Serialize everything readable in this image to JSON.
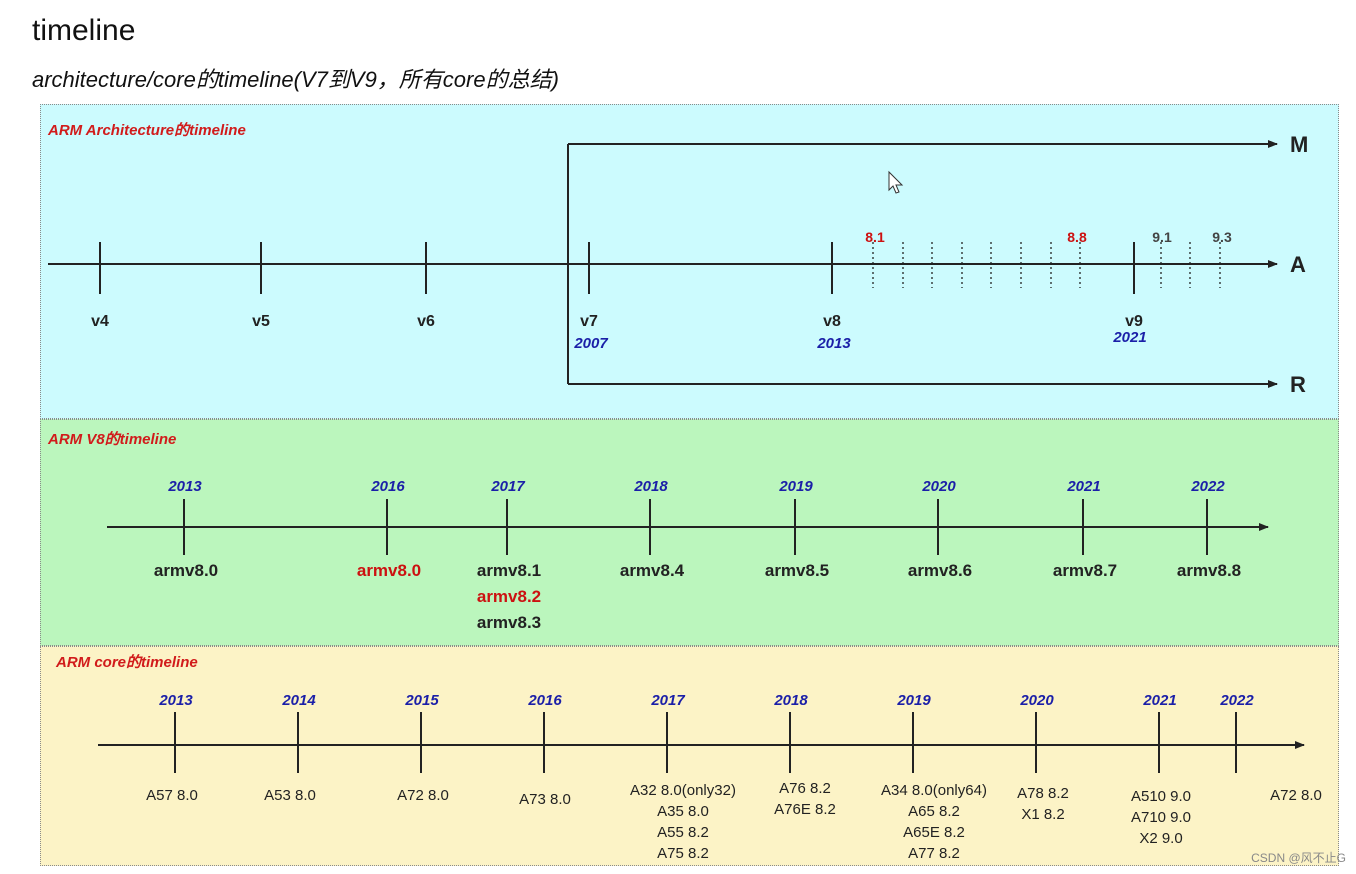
{
  "header": {
    "title": "timeline",
    "subtitle": "architecture/core的timeline(V7到V9，所有core的总结)"
  },
  "colors": {
    "blue_year": "#1b1fa8",
    "red_highlight": "#cc1111",
    "axis": "#222222"
  },
  "arch_panel": {
    "title": "ARM Architecture的timeline",
    "profiles": [
      "M",
      "A",
      "R"
    ],
    "versions": [
      {
        "label": "v4",
        "year": ""
      },
      {
        "label": "v5",
        "year": ""
      },
      {
        "label": "v6",
        "year": ""
      },
      {
        "label": "v7",
        "year": "2007"
      },
      {
        "label": "v8",
        "year": "2013"
      },
      {
        "label": "v9",
        "year": "2021"
      }
    ],
    "minor_labels": [
      {
        "text": "8.1",
        "highlight": true
      },
      {
        "text": "8.8",
        "highlight": true
      },
      {
        "text": "9.1",
        "highlight": false
      },
      {
        "text": "9.3",
        "highlight": false
      }
    ]
  },
  "v8_panel": {
    "title": "ARM V8的timeline",
    "entries": [
      {
        "year": "2013",
        "items": [
          {
            "text": "armv8.0",
            "highlight": false
          }
        ]
      },
      {
        "year": "2016",
        "items": [
          {
            "text": "armv8.0",
            "highlight": true
          }
        ]
      },
      {
        "year": "2017",
        "items": [
          {
            "text": "armv8.1",
            "highlight": false
          },
          {
            "text": "armv8.2",
            "highlight": true
          },
          {
            "text": "armv8.3",
            "highlight": false
          }
        ]
      },
      {
        "year": "2018",
        "items": [
          {
            "text": "armv8.4",
            "highlight": false
          }
        ]
      },
      {
        "year": "2019",
        "items": [
          {
            "text": "armv8.5",
            "highlight": false
          }
        ]
      },
      {
        "year": "2020",
        "items": [
          {
            "text": "armv8.6",
            "highlight": false
          }
        ]
      },
      {
        "year": "2021",
        "items": [
          {
            "text": "armv8.7",
            "highlight": false
          }
        ]
      },
      {
        "year": "2022",
        "items": [
          {
            "text": "armv8.8",
            "highlight": false
          }
        ]
      }
    ]
  },
  "core_panel": {
    "title": "ARM core的timeline",
    "entries": [
      {
        "year": "2013",
        "cores": [
          "A57 8.0"
        ]
      },
      {
        "year": "2014",
        "cores": [
          "A53 8.0"
        ]
      },
      {
        "year": "2015",
        "cores": [
          "A72 8.0"
        ]
      },
      {
        "year": "2016",
        "cores": [
          "A73 8.0"
        ]
      },
      {
        "year": "2017",
        "cores": [
          "A32 8.0(only32)",
          "A35 8.0",
          "A55 8.2",
          "A75 8.2"
        ]
      },
      {
        "year": "2018",
        "cores": [
          "A76 8.2",
          "A76E 8.2"
        ]
      },
      {
        "year": "2019",
        "cores": [
          "A34 8.0(only64)",
          "A65 8.2",
          "A65E 8.2",
          "A77 8.2"
        ]
      },
      {
        "year": "2020",
        "cores": [
          "A78 8.2",
          "X1 8.2"
        ]
      },
      {
        "year": "2021",
        "cores": [
          "A510 9.0",
          "A710 9.0",
          "X2      9.0"
        ]
      },
      {
        "year": "2022",
        "cores": [
          "A72 8.0"
        ]
      }
    ]
  },
  "watermark": "CSDN @风不止G"
}
